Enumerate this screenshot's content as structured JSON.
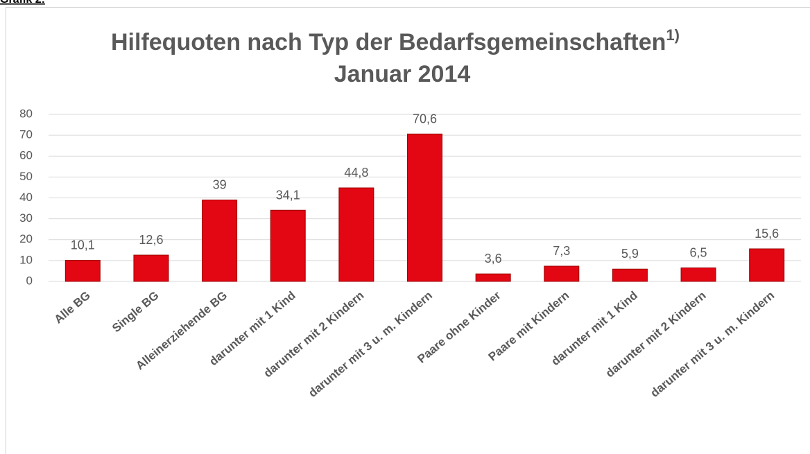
{
  "caption": "Grafik 2:",
  "chart_data": {
    "type": "bar",
    "title": [
      "Hilfequoten nach Typ der Bedarfsgemeinschaften",
      "Januar 2014"
    ],
    "title_footnote": "1)",
    "categories": [
      "Alle BG",
      "Single BG",
      "Alleinerziehende BG",
      "darunter mit 1 Kind",
      "darunter mit 2 Kindern",
      "darunter mit 3 u. m. Kindern",
      "Paare ohne Kinder",
      "Paare mit Kindern",
      "darunter mit 1 Kind",
      "darunter mit 2 Kindern",
      "darunter mit 3 u. m. Kindern"
    ],
    "values": [
      10.1,
      12.6,
      39,
      34.1,
      44.8,
      70.6,
      3.6,
      7.3,
      5.9,
      6.5,
      15.6
    ],
    "value_labels": [
      "10,1",
      "12,6",
      "39",
      "34,1",
      "44,8",
      "70,6",
      "3,6",
      "7,3",
      "5,9",
      "6,5",
      "15,6"
    ],
    "color": "#e30613",
    "ylim": [
      0,
      80
    ],
    "yticks": [
      0,
      10,
      20,
      30,
      40,
      50,
      60,
      70,
      80
    ],
    "grid": true
  }
}
